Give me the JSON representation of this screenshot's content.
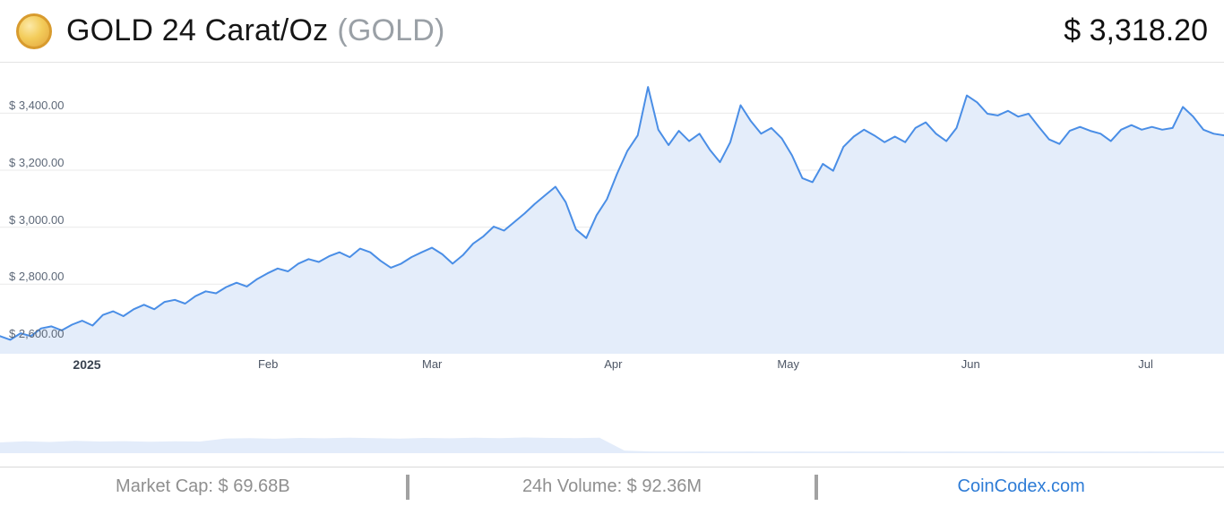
{
  "header": {
    "title": "GOLD 24 Carat/Oz",
    "symbol": "(GOLD)",
    "price": "$ 3,318.20",
    "coin_icon": "gold-coin-icon"
  },
  "chart_data": {
    "type": "area",
    "title": "GOLD 24 Carat/Oz price chart Jan-Jul 2025",
    "xlabel": "",
    "ylabel": "",
    "ylim": [
      2556,
      3530
    ],
    "grid": true,
    "line_color": "#4a8ee6",
    "fill_color": "#e4edfa",
    "grid_color": "#e9e9e9",
    "volume_color": "#e3ecfa",
    "y_ticks": [
      {
        "label": "$ 3,400.00",
        "value": 3400
      },
      {
        "label": "$ 3,200.00",
        "value": 3200
      },
      {
        "label": "$ 3,000.00",
        "value": 3000
      },
      {
        "label": "$ 2,800.00",
        "value": 2800
      },
      {
        "label": "$ 2,600.00",
        "value": 2600
      }
    ],
    "x_ticks": [
      {
        "label": "2025",
        "pos": 0.071,
        "bold": true
      },
      {
        "label": "Feb",
        "pos": 0.219,
        "bold": false
      },
      {
        "label": "Mar",
        "pos": 0.353,
        "bold": false
      },
      {
        "label": "Apr",
        "pos": 0.501,
        "bold": false
      },
      {
        "label": "May",
        "pos": 0.644,
        "bold": false
      },
      {
        "label": "Jun",
        "pos": 0.793,
        "bold": false
      },
      {
        "label": "Jul",
        "pos": 0.936,
        "bold": false
      }
    ],
    "values": [
      2618,
      2605,
      2628,
      2618,
      2645,
      2652,
      2638,
      2658,
      2672,
      2655,
      2692,
      2705,
      2688,
      2712,
      2728,
      2712,
      2738,
      2745,
      2732,
      2758,
      2775,
      2768,
      2790,
      2805,
      2792,
      2818,
      2838,
      2855,
      2845,
      2872,
      2888,
      2878,
      2898,
      2912,
      2895,
      2925,
      2912,
      2882,
      2858,
      2872,
      2895,
      2912,
      2928,
      2905,
      2872,
      2902,
      2942,
      2968,
      3002,
      2988,
      3018,
      3048,
      3082,
      3112,
      3142,
      3088,
      2992,
      2962,
      3042,
      3098,
      3188,
      3268,
      3322,
      3492,
      3342,
      3288,
      3338,
      3302,
      3328,
      3272,
      3228,
      3298,
      3428,
      3372,
      3328,
      3348,
      3312,
      3252,
      3172,
      3158,
      3222,
      3198,
      3282,
      3318,
      3342,
      3322,
      3298,
      3318,
      3298,
      3348,
      3368,
      3328,
      3302,
      3348,
      3462,
      3438,
      3398,
      3392,
      3408,
      3388,
      3398,
      3352,
      3308,
      3292,
      3338,
      3352,
      3338,
      3328,
      3302,
      3342,
      3358,
      3342,
      3352,
      3342,
      3348,
      3422,
      3388,
      3342,
      3328,
      3322
    ],
    "volume_values": [
      0.5,
      0.55,
      0.52,
      0.57,
      0.54,
      0.56,
      0.53,
      0.55,
      0.54,
      0.68,
      0.7,
      0.67,
      0.71,
      0.69,
      0.72,
      0.7,
      0.68,
      0.71,
      0.69,
      0.72,
      0.7,
      0.73,
      0.71,
      0.7,
      0.72,
      0.12,
      0.08,
      0.07,
      0.08,
      0.07,
      0.08,
      0.07,
      0.08,
      0.07,
      0.08,
      0.07,
      0.08,
      0.07,
      0.08,
      0.07,
      0.08,
      0.07,
      0.08,
      0.07,
      0.08,
      0.07,
      0.08,
      0.07,
      0.08,
      0.07
    ]
  },
  "footer": {
    "market_cap": "Market Cap: $ 69.68B",
    "volume_24h": "24h Volume: $ 92.36M",
    "link": "CoinCodex.com"
  }
}
